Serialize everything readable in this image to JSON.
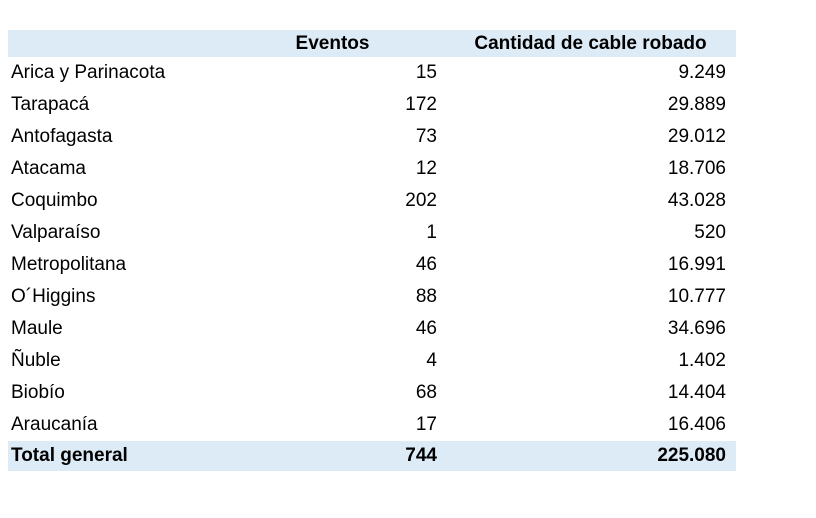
{
  "chart_data": {
    "type": "table",
    "columns": [
      "",
      "Eventos",
      "Cantidad de cable robado"
    ],
    "rows": [
      [
        "Arica y Parinacota",
        "15",
        "9.249"
      ],
      [
        "Tarapacá",
        "172",
        "29.889"
      ],
      [
        "Antofagasta",
        "73",
        "29.012"
      ],
      [
        "Atacama",
        "12",
        "18.706"
      ],
      [
        "Coquimbo",
        "202",
        "43.028"
      ],
      [
        "Valparaíso",
        "1",
        "520"
      ],
      [
        "Metropolitana",
        "46",
        "16.991"
      ],
      [
        "O´Higgins",
        "88",
        "10.777"
      ],
      [
        "Maule",
        "46",
        "34.696"
      ],
      [
        "Ñuble",
        "4",
        "1.402"
      ],
      [
        "Biobío",
        "68",
        "14.404"
      ],
      [
        "Araucanía",
        "17",
        "16.406"
      ]
    ],
    "total_row": [
      "Total general",
      "744",
      "225.080"
    ]
  },
  "colors": {
    "header_bg": "#DDEBF7",
    "total_bg": "#DDEBF7",
    "text": "#000000",
    "background": "#FFFFFF"
  }
}
